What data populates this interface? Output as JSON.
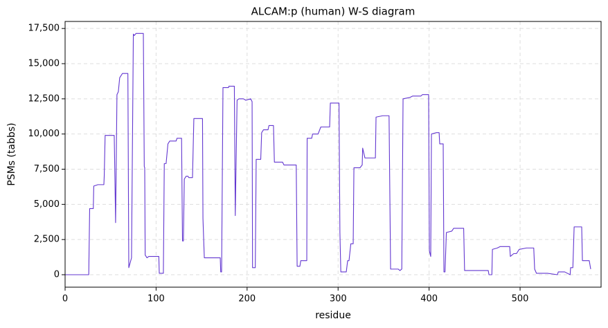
{
  "chart_data": {
    "type": "line",
    "title": "ALCAM:p (human) W-S diagram",
    "x_label": "residue",
    "y_label": "PSMs (tabbs)",
    "x": [
      0,
      26,
      27,
      31,
      31.5,
      36,
      42.6,
      43,
      44,
      54,
      55.5,
      57,
      58.5,
      60,
      63,
      69,
      70,
      73,
      75,
      76,
      78,
      86,
      87,
      87.5,
      88,
      90,
      92,
      103,
      103.5,
      108,
      109,
      111,
      113,
      115,
      122,
      123,
      128,
      129,
      130,
      131,
      133,
      135,
      136,
      140,
      141.5,
      151,
      151.5,
      153,
      170.5,
      171,
      172,
      173.5,
      179.6,
      180,
      186,
      187,
      189,
      191,
      196,
      198.6,
      204,
      205.5,
      206,
      209,
      210,
      215,
      216,
      218,
      223,
      224,
      229,
      230,
      239,
      240.5,
      254,
      255,
      258,
      259,
      265.6,
      266,
      271,
      272,
      278,
      281,
      290.7,
      291.5,
      301,
      302,
      303,
      309,
      310.5,
      312,
      314,
      316.6,
      317.4,
      324,
      326.5,
      327,
      329.5,
      341,
      341.7,
      349,
      356,
      357.7,
      366,
      368,
      370,
      371.4,
      379,
      382,
      391,
      392.7,
      399.5,
      400.3,
      401.8,
      402.6,
      408,
      411,
      411.7,
      415.5,
      416.3,
      417.5,
      419,
      425,
      427,
      438,
      439,
      465,
      465.8,
      469,
      469.6,
      475,
      478,
      488.6,
      489.3,
      493,
      496,
      499,
      507,
      515,
      516,
      518,
      530,
      541,
      542,
      549,
      555,
      555.5,
      558,
      559.4,
      567.7,
      568.5,
      576,
      577.6
    ],
    "series": [
      {
        "name": "PSMs",
        "color": "#6236d0",
        "values": [
          0,
          0,
          4700,
          4700,
          6300,
          6400,
          6400,
          7000,
          9900,
          9900,
          3700,
          12800,
          13000,
          14000,
          14300,
          14300,
          500,
          1200,
          17100,
          17000,
          17150,
          17150,
          7700,
          7600,
          1400,
          1200,
          1300,
          1300,
          100,
          100,
          7900,
          7900,
          9300,
          9500,
          9500,
          9700,
          9700,
          2400,
          2400,
          6800,
          7000,
          7000,
          6900,
          6900,
          11100,
          11100,
          4000,
          1200,
          1200,
          200,
          200,
          13300,
          13300,
          13400,
          13400,
          4200,
          12400,
          12500,
          12500,
          12400,
          12500,
          12300,
          500,
          500,
          8200,
          8200,
          10100,
          10300,
          10300,
          10600,
          10600,
          8000,
          8000,
          7800,
          7800,
          600,
          600,
          1000,
          1000,
          9700,
          9700,
          10000,
          10000,
          10500,
          10500,
          12200,
          12200,
          3000,
          200,
          200,
          1000,
          1000,
          2200,
          2200,
          7600,
          7600,
          7800,
          9000,
          8300,
          8300,
          11200,
          11300,
          11300,
          400,
          400,
          300,
          400,
          12500,
          12600,
          12700,
          12700,
          12800,
          12800,
          1700,
          1300,
          10000,
          10100,
          10100,
          9300,
          9300,
          200,
          200,
          3000,
          3100,
          3300,
          3300,
          300,
          300,
          0,
          0,
          1800,
          1900,
          2000,
          2000,
          1300,
          1500,
          1500,
          1800,
          1900,
          1900,
          400,
          100,
          100,
          0,
          200,
          200,
          0,
          500,
          500,
          3400,
          3400,
          1000,
          1000,
          400
        ]
      }
    ],
    "xlim": [
      0,
      589
    ],
    "ylim": [
      -885,
      18000
    ],
    "xticks": [
      0,
      100,
      200,
      300,
      400,
      500
    ],
    "yticks": [
      0,
      {
        "value": 2500,
        "label": "2,500"
      },
      {
        "value": 5000,
        "label": "5,000"
      },
      {
        "value": 7500,
        "label": "7,500"
      },
      {
        "value": 10000,
        "label": "10,000"
      },
      {
        "value": 12500,
        "label": "12,500"
      },
      {
        "value": 15000,
        "label": "15,000"
      },
      {
        "value": 17500,
        "label": "17,500"
      }
    ],
    "grid": true
  }
}
